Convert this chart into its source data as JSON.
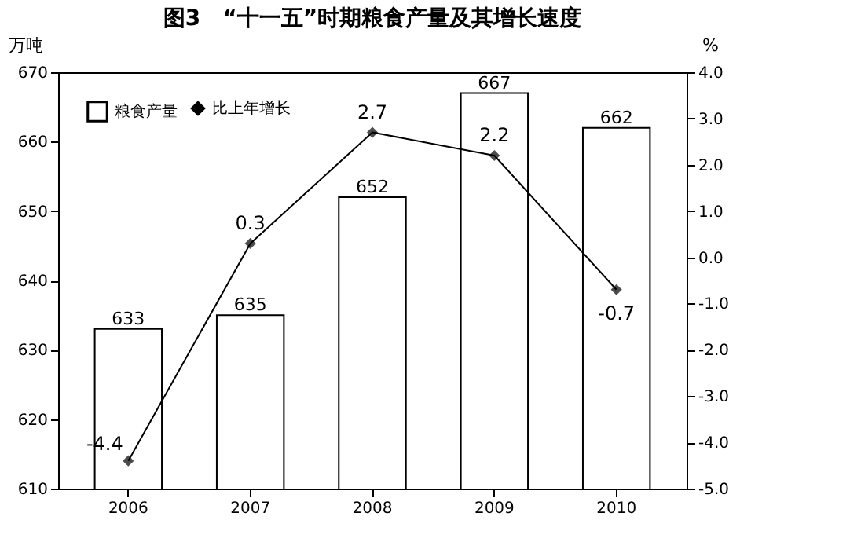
{
  "chart_data": {
    "type": "bar",
    "title": "图3　“十一五”时期粮食产量及其增长速度",
    "ylabel": "万吨",
    "y2label": "%",
    "categories": [
      "2006",
      "2007",
      "2008",
      "2009",
      "2010"
    ],
    "series": [
      {
        "name": "粮食产量",
        "color": "#ffffff",
        "values": [
          633,
          635,
          652,
          667,
          662
        ]
      },
      {
        "name": "比上年增长",
        "type": "line",
        "axis": "y2",
        "color": "#000000",
        "values": [
          -4.4,
          0.3,
          2.7,
          2.2,
          -0.7
        ],
        "marker": "diamond",
        "line_style": "solid"
      }
    ],
    "ylim": [
      610,
      670
    ],
    "yticks": [
      610,
      620,
      630,
      640,
      650,
      660,
      670
    ],
    "y2lim": [
      -5,
      4
    ],
    "y2ticks": [
      {
        "value": -5,
        "label": "-5.0"
      },
      {
        "value": -4,
        "label": "-4.0"
      },
      {
        "value": -3,
        "label": "-3.0"
      },
      {
        "value": -2,
        "label": "-2.0"
      },
      {
        "value": -1,
        "label": "-1.0"
      },
      {
        "value": 0,
        "label": "0.0"
      },
      {
        "value": 1,
        "label": "1.0"
      },
      {
        "value": 2,
        "label": "2.0"
      },
      {
        "value": 3,
        "label": "3.0"
      },
      {
        "value": 4,
        "label": "4.0"
      }
    ],
    "data_labels": true,
    "grid": false,
    "legend": "top left"
  }
}
